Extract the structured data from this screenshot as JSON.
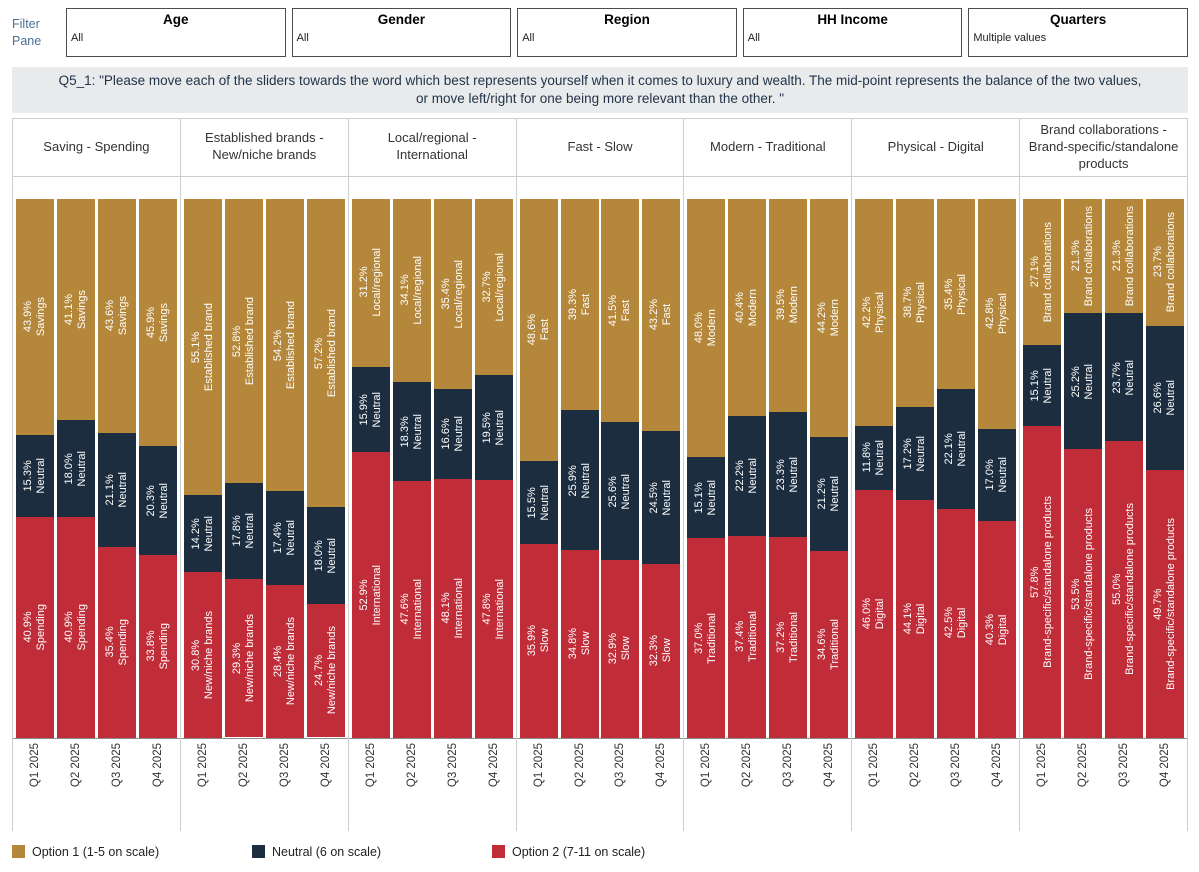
{
  "filter_pane": {
    "label": "Filter Pane",
    "filters": [
      {
        "title": "Age",
        "value": "All"
      },
      {
        "title": "Gender",
        "value": "All"
      },
      {
        "title": "Region",
        "value": "All"
      },
      {
        "title": "HH Income",
        "value": "All"
      },
      {
        "title": "Quarters",
        "value": "Multiple values"
      }
    ]
  },
  "question": {
    "text": "Q5_1: \"Please move each of the sliders towards the word which best represents yourself when it comes to luxury and wealth. The mid-point represents the balance of the two values, or move left/right for one being more relevant than the other. \""
  },
  "chart_data": {
    "type": "bar",
    "subtype": "100pct-stacked-vertical",
    "x_categories": [
      "Q1 2025",
      "Q2 2025",
      "Q3 2025",
      "Q4 2025"
    ],
    "ylim": [
      0,
      100
    ],
    "grid": false,
    "legend_position": "bottom-left",
    "neutral_label": "Neutral",
    "colors": {
      "option1": "#b5873b",
      "neutral": "#1c2d40",
      "option2": "#c02d39"
    },
    "legend": [
      {
        "key": "option1",
        "label": "Option 1 (1-5 on scale)"
      },
      {
        "key": "neutral",
        "label": "Neutral (6 on scale)"
      },
      {
        "key": "option2",
        "label": "Option 2 (7-11 on scale)"
      }
    ],
    "panels": [
      {
        "title": "Saving - Spending",
        "option1_label": "Savings",
        "option2_label": "Spending",
        "series": [
          {
            "quarter": "Q1 2025",
            "option1": 43.9,
            "neutral": 15.3,
            "option2": 40.9
          },
          {
            "quarter": "Q2 2025",
            "option1": 41.1,
            "neutral": 18.0,
            "option2": 40.9
          },
          {
            "quarter": "Q3 2025",
            "option1": 43.6,
            "neutral": 21.1,
            "option2": 35.4
          },
          {
            "quarter": "Q4 2025",
            "option1": 45.9,
            "neutral": 20.3,
            "option2": 33.8
          }
        ]
      },
      {
        "title": "Established brands - New/niche brands",
        "option1_label": "Established brand",
        "option2_label": "New/niche brands",
        "series": [
          {
            "quarter": "Q1 2025",
            "option1": 55.1,
            "neutral": 14.2,
            "option2": 30.8
          },
          {
            "quarter": "Q2 2025",
            "option1": 52.8,
            "neutral": 17.8,
            "option2": 29.3
          },
          {
            "quarter": "Q3 2025",
            "option1": 54.2,
            "neutral": 17.4,
            "option2": 28.4
          },
          {
            "quarter": "Q4 2025",
            "option1": 57.2,
            "neutral": 18.0,
            "option2": 24.7
          }
        ]
      },
      {
        "title": "Local/regional - International",
        "option1_label": "Local/regional",
        "option2_label": "International",
        "series": [
          {
            "quarter": "Q1 2025",
            "option1": 31.2,
            "neutral": 15.9,
            "option2": 52.9
          },
          {
            "quarter": "Q2 2025",
            "option1": 34.1,
            "neutral": 18.3,
            "option2": 47.6
          },
          {
            "quarter": "Q3 2025",
            "option1": 35.4,
            "neutral": 16.6,
            "option2": 48.1
          },
          {
            "quarter": "Q4 2025",
            "option1": 32.7,
            "neutral": 19.5,
            "option2": 47.8
          }
        ]
      },
      {
        "title": "Fast - Slow",
        "option1_label": "Fast",
        "option2_label": "Slow",
        "series": [
          {
            "quarter": "Q1 2025",
            "option1": 48.6,
            "neutral": 15.5,
            "option2": 35.9
          },
          {
            "quarter": "Q2 2025",
            "option1": 39.3,
            "neutral": 25.9,
            "option2": 34.8
          },
          {
            "quarter": "Q3 2025",
            "option1": 41.5,
            "neutral": 25.6,
            "option2": 32.9
          },
          {
            "quarter": "Q4 2025",
            "option1": 43.2,
            "neutral": 24.5,
            "option2": 32.3
          }
        ]
      },
      {
        "title": "Modern - Traditional",
        "option1_label": "Modern",
        "option2_label": "Traditional",
        "series": [
          {
            "quarter": "Q1 2025",
            "option1": 48.0,
            "neutral": 15.1,
            "option2": 37.0
          },
          {
            "quarter": "Q2 2025",
            "option1": 40.4,
            "neutral": 22.2,
            "option2": 37.4
          },
          {
            "quarter": "Q3 2025",
            "option1": 39.5,
            "neutral": 23.3,
            "option2": 37.2
          },
          {
            "quarter": "Q4 2025",
            "option1": 44.2,
            "neutral": 21.2,
            "option2": 34.6
          }
        ]
      },
      {
        "title": "Physical - Digital",
        "option1_label": "Physical",
        "option2_label": "Digital",
        "series": [
          {
            "quarter": "Q1 2025",
            "option1": 42.2,
            "neutral": 11.8,
            "option2": 46.0
          },
          {
            "quarter": "Q2 2025",
            "option1": 38.7,
            "neutral": 17.2,
            "option2": 44.1
          },
          {
            "quarter": "Q3 2025",
            "option1": 35.4,
            "neutral": 22.1,
            "option2": 42.5
          },
          {
            "quarter": "Q4 2025",
            "option1": 42.8,
            "neutral": 17.0,
            "option2": 40.3
          }
        ]
      },
      {
        "title": "Brand collaborations - Brand-specific/standalone products",
        "option1_label": "Brand collaborations",
        "option2_label": "Brand-specific/standalone products",
        "series": [
          {
            "quarter": "Q1 2025",
            "option1": 27.1,
            "neutral": 15.1,
            "option2": 57.8
          },
          {
            "quarter": "Q2 2025",
            "option1": 21.3,
            "neutral": 25.2,
            "option2": 53.5
          },
          {
            "quarter": "Q3 2025",
            "option1": 21.3,
            "neutral": 23.7,
            "option2": 55.0
          },
          {
            "quarter": "Q4 2025",
            "option1": 23.7,
            "neutral": 26.6,
            "option2": 49.7
          }
        ]
      }
    ]
  }
}
